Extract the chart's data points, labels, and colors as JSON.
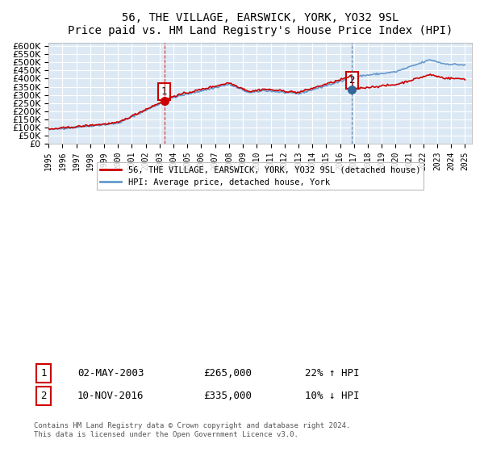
{
  "title": "56, THE VILLAGE, EARSWICK, YORK, YO32 9SL",
  "subtitle": "Price paid vs. HM Land Registry's House Price Index (HPI)",
  "ylim": [
    0,
    620000
  ],
  "ytick_values": [
    0,
    50000,
    100000,
    150000,
    200000,
    250000,
    300000,
    350000,
    400000,
    450000,
    500000,
    550000,
    600000
  ],
  "legend_label_red": "56, THE VILLAGE, EARSWICK, YORK, YO32 9SL (detached house)",
  "legend_label_blue": "HPI: Average price, detached house, York",
  "sale1_date": "02-MAY-2003",
  "sale1_price": "£265,000",
  "sale1_hpi": "22% ↑ HPI",
  "sale1_year": 2003.33,
  "sale1_value": 265000,
  "sale2_date": "10-NOV-2016",
  "sale2_price": "£335,000",
  "sale2_hpi": "10% ↓ HPI",
  "sale2_year": 2016.86,
  "sale2_value": 335000,
  "copyright_text": "Contains HM Land Registry data © Crown copyright and database right 2024.\nThis data is licensed under the Open Government Licence v3.0.",
  "background_color": "#ffffff",
  "plot_bg_color": "#dce9f5",
  "grid_color": "#ffffff",
  "red_color": "#cc0000",
  "blue_color": "#6699cc",
  "sale2_marker_color": "#336699"
}
